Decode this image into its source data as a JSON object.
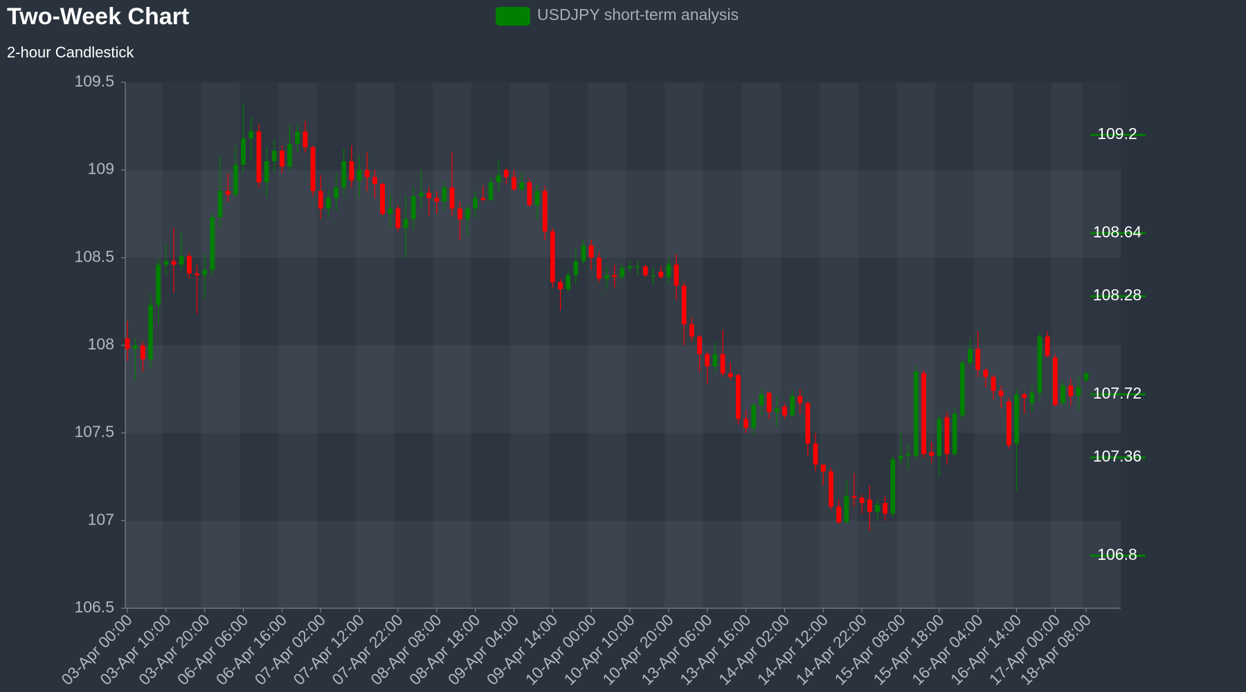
{
  "chart_data": {
    "type": "candlestick",
    "title": "Two-Week Chart",
    "subtitle": "2-hour Candlestick",
    "categories": [
      "03-Apr 00:00",
      null,
      null,
      null,
      null,
      "03-Apr 10:00",
      null,
      null,
      null,
      null,
      "03-Apr 20:00",
      null,
      null,
      null,
      null,
      "06-Apr 06:00",
      null,
      null,
      null,
      null,
      "06-Apr 16:00",
      null,
      null,
      null,
      null,
      "07-Apr 02:00",
      null,
      null,
      null,
      null,
      "07-Apr 12:00",
      null,
      null,
      null,
      null,
      "07-Apr 22:00",
      null,
      null,
      null,
      null,
      "08-Apr 08:00",
      null,
      null,
      null,
      null,
      "08-Apr 18:00",
      null,
      null,
      null,
      null,
      "09-Apr 04:00",
      null,
      null,
      null,
      null,
      "09-Apr 14:00",
      null,
      null,
      null,
      null,
      "10-Apr 00:00",
      null,
      null,
      null,
      null,
      "10-Apr 10:00",
      null,
      null,
      null,
      null,
      "10-Apr 20:00",
      null,
      null,
      null,
      null,
      "13-Apr 06:00",
      null,
      null,
      null,
      null,
      "13-Apr 16:00",
      null,
      null,
      null,
      null,
      "14-Apr 02:00",
      null,
      null,
      null,
      null,
      "14-Apr 12:00",
      null,
      null,
      null,
      null,
      "14-Apr 22:00",
      null,
      null,
      null,
      null,
      "15-Apr 08:00",
      null,
      null,
      null,
      null,
      "15-Apr 18:00",
      null,
      null,
      null,
      null,
      "16-Apr 04:00",
      null,
      null,
      null,
      null,
      "16-Apr 14:00",
      null,
      null,
      null,
      null,
      "17-Apr 00:00",
      null,
      null,
      null,
      "18-Apr 08:00"
    ],
    "series": [
      {
        "name": "USDJPY short-term analysis",
        "color": "#008000",
        "down_color": "#ff0000",
        "open": [
          108.04,
          107.98,
          108.0,
          107.92,
          108.23,
          108.46,
          108.48,
          108.46,
          108.51,
          108.41,
          108.4,
          108.43,
          108.73,
          108.88,
          108.86,
          109.03,
          109.18,
          109.22,
          108.93,
          109.05,
          109.11,
          109.02,
          109.15,
          109.22,
          109.13,
          108.88,
          108.78,
          108.84,
          108.9,
          109.05,
          108.94,
          109.0,
          108.96,
          108.92,
          108.75,
          108.78,
          108.67,
          108.72,
          108.85,
          108.87,
          108.84,
          108.82,
          108.9,
          108.78,
          108.72,
          108.78,
          108.84,
          108.83,
          108.93,
          109.0,
          108.96,
          108.89,
          108.93,
          108.8,
          108.88,
          108.65,
          108.36,
          108.32,
          108.4,
          108.48,
          108.57,
          108.5,
          108.38,
          108.4,
          108.39,
          108.44,
          108.45,
          108.45,
          108.4,
          108.42,
          108.39,
          108.46,
          108.34,
          108.12,
          108.05,
          107.95,
          107.88,
          107.95,
          107.84,
          107.83,
          107.58,
          107.53,
          107.66,
          107.73,
          107.62,
          107.65,
          107.6,
          107.71,
          107.67,
          107.44,
          107.32,
          107.28,
          107.08,
          106.99,
          107.14,
          107.13,
          107.12,
          107.05,
          107.1,
          107.04,
          107.35,
          107.37,
          107.37,
          107.84,
          107.39,
          107.37,
          107.59,
          107.38,
          107.6,
          107.9,
          107.98,
          107.86,
          107.82,
          107.74,
          107.68,
          107.44,
          107.72,
          107.67,
          107.73,
          108.05,
          107.93,
          107.67,
          107.77,
          107.71,
          107.8
        ],
        "high": [
          108.14,
          108.04,
          108.02,
          108.29,
          108.5,
          108.58,
          108.67,
          108.64,
          108.53,
          108.46,
          108.52,
          108.75,
          109.08,
          108.98,
          109.14,
          109.38,
          109.3,
          109.26,
          109.13,
          109.18,
          109.14,
          109.26,
          109.26,
          109.28,
          109.14,
          108.97,
          108.88,
          108.98,
          109.12,
          109.14,
          109.08,
          109.1,
          109.0,
          108.93,
          108.86,
          108.8,
          108.86,
          108.9,
          109.0,
          108.9,
          108.88,
          108.93,
          109.1,
          108.82,
          108.8,
          108.88,
          108.91,
          108.96,
          109.06,
          109.01,
          109.0,
          108.98,
          108.95,
          108.92,
          108.91,
          108.67,
          108.38,
          108.43,
          108.55,
          108.6,
          108.6,
          108.53,
          108.45,
          108.46,
          108.47,
          108.48,
          108.48,
          108.46,
          108.44,
          108.45,
          108.5,
          108.52,
          108.36,
          108.16,
          108.06,
          107.96,
          108.02,
          108.09,
          107.9,
          107.84,
          107.63,
          107.67,
          107.75,
          107.73,
          107.71,
          107.67,
          107.74,
          107.75,
          107.68,
          107.5,
          107.32,
          107.3,
          107.12,
          107.23,
          107.27,
          107.15,
          107.2,
          107.12,
          107.14,
          107.37,
          107.5,
          107.44,
          107.88,
          107.86,
          107.45,
          107.6,
          107.62,
          107.64,
          107.92,
          108.04,
          108.08,
          107.87,
          107.83,
          107.77,
          107.7,
          107.75,
          107.73,
          107.77,
          108.07,
          108.08,
          107.95,
          107.79,
          107.81,
          107.82,
          107.85
        ],
        "low": [
          107.91,
          107.8,
          107.85,
          107.87,
          108.12,
          108.4,
          108.3,
          108.43,
          108.38,
          108.18,
          108.27,
          108.4,
          108.67,
          108.82,
          108.85,
          108.98,
          109.05,
          108.9,
          108.85,
          108.98,
          108.98,
          109.0,
          109.1,
          109.1,
          108.85,
          108.72,
          108.73,
          108.77,
          108.85,
          108.9,
          108.84,
          108.88,
          108.84,
          108.74,
          108.67,
          108.65,
          108.5,
          108.66,
          108.78,
          108.74,
          108.75,
          108.77,
          108.74,
          108.6,
          108.62,
          108.73,
          108.82,
          108.82,
          108.88,
          108.92,
          108.88,
          108.88,
          108.79,
          108.72,
          108.6,
          108.33,
          108.2,
          108.3,
          108.35,
          108.46,
          108.43,
          108.36,
          108.32,
          108.33,
          108.37,
          108.42,
          108.4,
          108.39,
          108.35,
          108.38,
          108.35,
          108.26,
          108.0,
          108.02,
          107.85,
          107.78,
          107.85,
          107.82,
          107.8,
          107.55,
          107.5,
          107.49,
          107.6,
          107.58,
          107.54,
          107.58,
          107.6,
          107.61,
          107.37,
          107.28,
          107.2,
          107.06,
          106.98,
          106.99,
          107.08,
          107.04,
          106.94,
          107.0,
          107.0,
          107.02,
          107.32,
          107.29,
          107.35,
          107.36,
          107.33,
          107.25,
          107.32,
          107.37,
          107.58,
          107.88,
          107.82,
          107.76,
          107.69,
          107.64,
          107.41,
          107.17,
          107.61,
          107.62,
          107.68,
          107.93,
          107.65,
          107.66,
          107.66,
          107.63,
          107.79
        ],
        "close": [
          107.98,
          108.0,
          107.92,
          108.23,
          108.46,
          108.48,
          108.46,
          108.51,
          108.41,
          108.4,
          108.43,
          108.73,
          108.88,
          108.86,
          109.03,
          109.18,
          109.22,
          108.93,
          109.05,
          109.11,
          109.02,
          109.15,
          109.22,
          109.13,
          108.88,
          108.78,
          108.84,
          108.9,
          109.05,
          108.94,
          109.0,
          108.96,
          108.92,
          108.75,
          108.78,
          108.67,
          108.72,
          108.85,
          108.87,
          108.84,
          108.82,
          108.9,
          108.78,
          108.72,
          108.78,
          108.84,
          108.83,
          108.93,
          108.97,
          108.96,
          108.89,
          108.93,
          108.8,
          108.88,
          108.65,
          108.36,
          108.32,
          108.4,
          108.48,
          108.57,
          108.5,
          108.38,
          108.4,
          108.39,
          108.44,
          108.45,
          108.45,
          108.4,
          108.4,
          108.39,
          108.46,
          108.34,
          108.12,
          108.05,
          107.95,
          107.88,
          107.95,
          107.84,
          107.82,
          107.58,
          107.53,
          107.66,
          107.72,
          107.62,
          107.64,
          107.6,
          107.71,
          107.67,
          107.44,
          107.32,
          107.28,
          107.08,
          106.99,
          107.14,
          107.13,
          107.1,
          107.05,
          107.09,
          107.04,
          107.35,
          107.37,
          107.38,
          107.85,
          107.38,
          107.37,
          107.58,
          107.38,
          107.61,
          107.9,
          107.98,
          107.86,
          107.82,
          107.74,
          107.71,
          107.43,
          107.72,
          107.7,
          107.73,
          108.05,
          107.94,
          107.66,
          107.77,
          107.71,
          107.76,
          107.84
        ]
      }
    ],
    "ylim": [
      106.5,
      109.5
    ],
    "yticks": [
      106.5,
      107,
      107.5,
      108,
      108.5,
      109,
      109.5
    ],
    "levels": [
      109.2,
      108.64,
      108.28,
      107.72,
      107.36,
      106.8
    ],
    "level_color": "#008000"
  }
}
